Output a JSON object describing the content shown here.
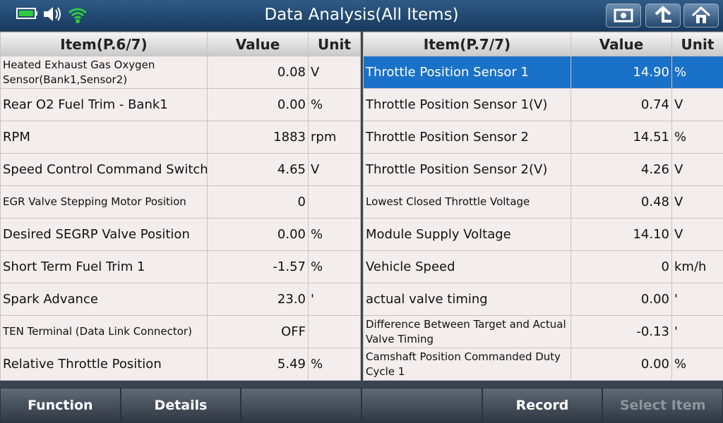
{
  "header": {
    "title": "Data Analysis(All Items)"
  },
  "left_table": {
    "columns": [
      "Item(P.6/7)",
      "Value",
      "Unit"
    ],
    "rows": [
      {
        "item": "Heated Exhaust Gas Oxygen Sensor(Bank1,Sensor2)",
        "value": "0.08",
        "unit": "V"
      },
      {
        "item": "Rear O2 Fuel Trim - Bank1",
        "value": "0.00",
        "unit": "%"
      },
      {
        "item": "RPM",
        "value": "1883",
        "unit": "rpm"
      },
      {
        "item": "Speed Control Command Switch",
        "value": "4.65",
        "unit": "V"
      },
      {
        "item": "EGR Valve Stepping Motor Position",
        "value": "0"
      },
      {
        "item": "Desired SEGRP Valve Position",
        "value": "0.00",
        "unit": "%"
      },
      {
        "item": "Short Term Fuel Trim 1",
        "value": "-1.57",
        "unit": "%"
      },
      {
        "item": "Spark Advance",
        "value": "23.0",
        "unit": "'"
      },
      {
        "item": "TEN Terminal (Data Link Connector)",
        "value": "OFF"
      },
      {
        "item": "Relative Throttle Position",
        "value": "5.49",
        "unit": "%"
      }
    ]
  },
  "right_table": {
    "columns": [
      "Item(P.7/7)",
      "Value",
      "Unit"
    ],
    "rows": [
      {
        "item": "Throttle Position Sensor 1",
        "value": "14.90",
        "unit": "%"
      },
      {
        "item": "Throttle Position Sensor 1(V)",
        "value": "0.74",
        "unit": "V"
      },
      {
        "item": "Throttle Position Sensor 2",
        "value": "14.51",
        "unit": "%"
      },
      {
        "item": "Throttle Position Sensor 2(V)",
        "value": "4.26",
        "unit": "V"
      },
      {
        "item": "Lowest Closed Throttle Voltage",
        "value": "0.48",
        "unit": "V"
      },
      {
        "item": "Module Supply Voltage",
        "value": "14.10",
        "unit": "V"
      },
      {
        "item": "Vehicle Speed",
        "value": "0",
        "unit": "km/h"
      },
      {
        "item": "actual valve timing",
        "value": "0.00",
        "unit": "'"
      },
      {
        "item": "Difference Between Target and Actual Valve Timing",
        "value": "-0.13",
        "unit": "'"
      },
      {
        "item": "Camshaft Position Commanded Duty Cycle 1",
        "value": "0.00",
        "unit": "%"
      }
    ]
  },
  "buttons": {
    "function": "Function",
    "details": "Details",
    "record": "Record",
    "select_item": "Select Item"
  }
}
